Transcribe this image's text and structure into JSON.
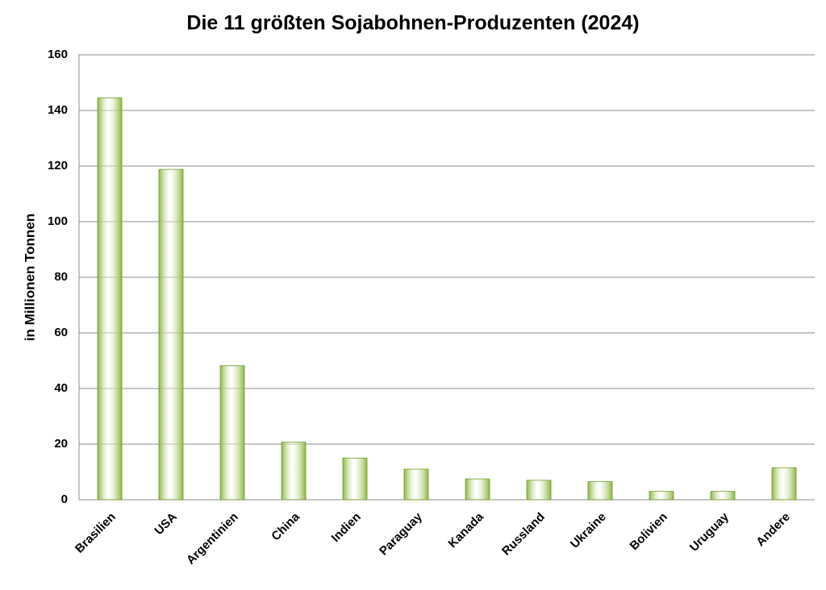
{
  "chart_data": {
    "type": "bar",
    "title": "Die 11 größten Sojabohnen-Produzenten (2024)",
    "y_label": "in Millionen Tonnen",
    "categories": [
      "Brasilien",
      "USA",
      "Argentinien",
      "China",
      "Indien",
      "Paraguay",
      "Kanada",
      "Russland",
      "Ukraine",
      "Bolivien",
      "Uruguay",
      "Andere"
    ],
    "values": [
      144.5,
      118.8,
      48.2,
      20.7,
      15,
      11,
      7.5,
      7,
      6.5,
      3,
      3,
      11.5
    ],
    "color": "#8cb83a",
    "ylim": [
      0,
      160
    ],
    "yticks": [
      0,
      20,
      40,
      60,
      80,
      100,
      120,
      140,
      160
    ],
    "grid": true
  }
}
